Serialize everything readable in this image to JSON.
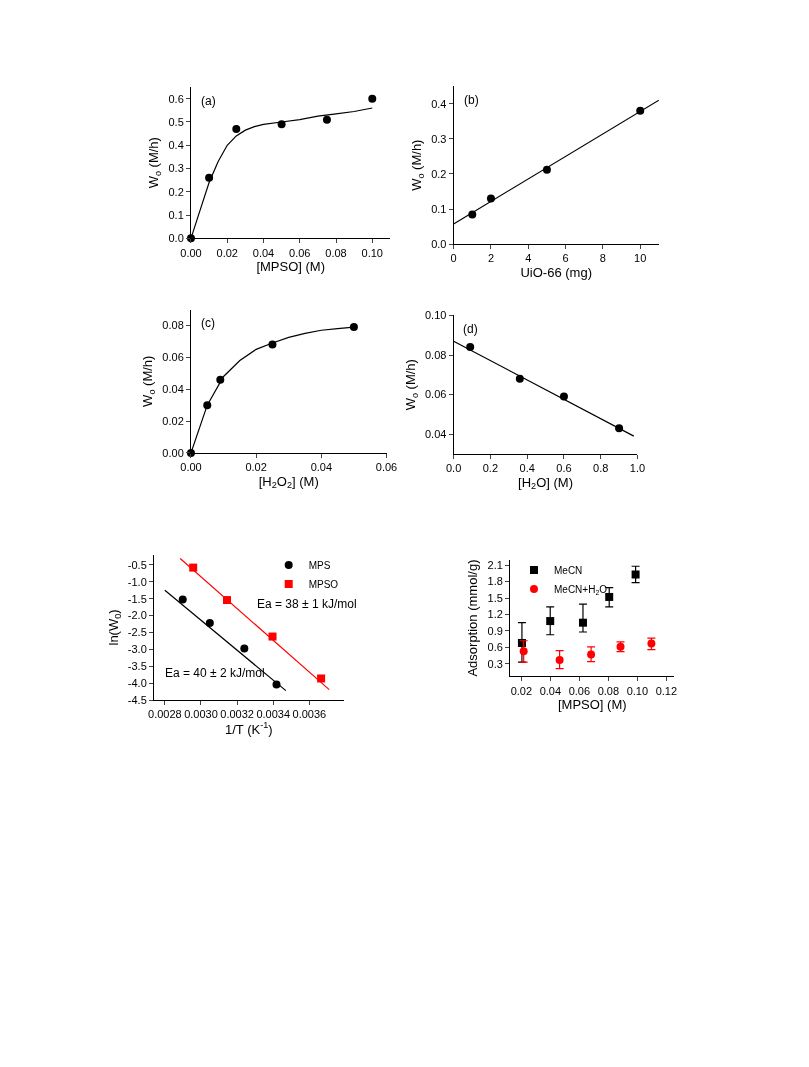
{
  "chart_data": [
    {
      "type": "scatter",
      "xlabel": "[MPSO] (M)",
      "ylabel": "W$_{o}$ (M/h)",
      "annotations": [
        "(a)"
      ],
      "legend": false,
      "xlim": [
        0,
        0.11
      ],
      "ylim": [
        0,
        0.65
      ],
      "xticks": [
        {
          "value": 0,
          "label": "0.00"
        },
        {
          "value": 0.02,
          "label": "0.02"
        },
        {
          "value": 0.04,
          "label": "0.04"
        },
        {
          "value": 0.06,
          "label": "0.06"
        },
        {
          "value": 0.08,
          "label": "0.08"
        },
        {
          "value": 0.1,
          "label": "0.10"
        }
      ],
      "yticks": [
        {
          "value": 0,
          "label": "0.0"
        },
        0.1,
        0.2,
        0.3,
        0.4,
        0.5,
        0.6
      ],
      "series": [
        {
          "type": "line",
          "marker": "none",
          "color": "#000000",
          "x": [
            0,
            0.005,
            0.01,
            0.015,
            0.02,
            0.025,
            0.03,
            0.035,
            0.04,
            0.05,
            0.06,
            0.07,
            0.08,
            0.09,
            0.1
          ],
          "values": [
            0,
            0.12,
            0.24,
            0.33,
            0.4,
            0.44,
            0.465,
            0.48,
            0.49,
            0.5,
            0.51,
            0.525,
            0.535,
            0.545,
            0.56
          ]
        },
        {
          "type": "scatter",
          "marker": "circle",
          "color": "#000000",
          "x": [
            0,
            0.01,
            0.025,
            0.05,
            0.075,
            0.1
          ],
          "values": [
            0,
            0.26,
            0.47,
            0.49,
            0.51,
            0.6
          ]
        }
      ]
    },
    {
      "type": "scatter",
      "xlabel": "UiO-66 (mg)",
      "ylabel": "W$_{o}$ (M/h)",
      "annotations": [
        "(b)"
      ],
      "legend": false,
      "xlim": [
        0,
        11
      ],
      "ylim": [
        0,
        0.45
      ],
      "xticks": [
        0,
        2,
        4,
        6,
        8,
        10
      ],
      "yticks": [
        {
          "value": 0,
          "label": "0.0"
        },
        0.1,
        0.2,
        0.3,
        0.4
      ],
      "series": [
        {
          "type": "line",
          "marker": "none",
          "color": "#000000",
          "x": [
            0,
            11
          ],
          "values": [
            0.058,
            0.41
          ]
        },
        {
          "type": "scatter",
          "marker": "circle",
          "color": "#000000",
          "x": [
            1,
            2,
            5,
            10
          ],
          "values": [
            0.085,
            0.13,
            0.212,
            0.38
          ]
        }
      ]
    },
    {
      "type": "scatter",
      "xlabel": "[H$_{2}$O$_{2}$] (M)",
      "ylabel": "W$_{o}$ (M/h)",
      "annotations": [
        "(c)"
      ],
      "legend": false,
      "xlim": [
        0,
        0.06
      ],
      "ylim": [
        0,
        0.09
      ],
      "xticks": [
        {
          "value": 0,
          "label": "0.00"
        },
        0.02,
        0.04,
        0.06
      ],
      "yticks": [
        {
          "value": 0,
          "label": "0.00"
        },
        0.02,
        0.04,
        0.06,
        0.08
      ],
      "series": [
        {
          "type": "line",
          "marker": "none",
          "color": "#000000",
          "x": [
            0,
            0.005,
            0.01,
            0.015,
            0.02,
            0.025,
            0.03,
            0.035,
            0.04,
            0.045,
            0.05
          ],
          "values": [
            0,
            0.03,
            0.048,
            0.058,
            0.065,
            0.069,
            0.0725,
            0.075,
            0.077,
            0.078,
            0.079
          ]
        },
        {
          "type": "scatter",
          "marker": "circle",
          "color": "#000000",
          "x": [
            0,
            0.005,
            0.009,
            0.025,
            0.05
          ],
          "values": [
            0,
            0.03,
            0.046,
            0.068,
            0.079
          ]
        }
      ]
    },
    {
      "type": "scatter",
      "xlabel": "[H$_{2}$O] (M)",
      "ylabel": "W$_{o}$ (M/h)",
      "annotations": [
        "(d)"
      ],
      "legend": false,
      "xlim": [
        0,
        1.0
      ],
      "ylim": [
        0.03,
        0.1
      ],
      "xticks": [
        {
          "value": 0,
          "label": "0.0"
        },
        0.2,
        0.4,
        0.6,
        0.8,
        {
          "value": 1,
          "label": "1.0"
        }
      ],
      "yticks": [
        0.04,
        0.06,
        0.08,
        {
          "value": 0.1,
          "label": "0.10"
        }
      ],
      "series": [
        {
          "type": "line",
          "marker": "none",
          "color": "#000000",
          "x": [
            0,
            0.98
          ],
          "values": [
            0.087,
            0.039
          ]
        },
        {
          "type": "scatter",
          "marker": "circle",
          "color": "#000000",
          "x": [
            0.09,
            0.36,
            0.6,
            0.9
          ],
          "values": [
            0.084,
            0.068,
            0.059,
            0.043
          ]
        }
      ]
    },
    {
      "type": "scatter",
      "xlabel": "1/T (K$^{-1}$)",
      "ylabel": "ln(W$_{0}$)",
      "legend": "top right",
      "annotations": [
        "Ea = 38 ± 1 kJ/mol",
        "Ea = 40 ± 2 kJ/mol"
      ],
      "xlim": [
        0.00274,
        0.00379
      ],
      "ylim": [
        -4.5,
        -0.2
      ],
      "xticks": [
        0.0028,
        {
          "value": 0.003,
          "label": "0.0030"
        },
        0.0032,
        0.0034,
        0.0036
      ],
      "yticks": [
        -4.5,
        {
          "value": -4,
          "label": "-4.0"
        },
        -3.5,
        {
          "value": -3,
          "label": "-3.0"
        },
        -2.5,
        {
          "value": -2,
          "label": "-2.0"
        },
        -1.5,
        {
          "value": -1,
          "label": "-1.0"
        },
        -0.5
      ],
      "series": [
        {
          "type": "line",
          "marker": "none",
          "color": "#000000",
          "x": [
            0.0028,
            0.00347
          ],
          "values": [
            -1.25,
            -4.22
          ]
        },
        {
          "type": "line",
          "marker": "none",
          "color": "#ff0000",
          "x": [
            0.002885,
            0.00371
          ],
          "values": [
            -0.31,
            -4.19
          ]
        },
        {
          "type": "scatter",
          "name": "MPS",
          "marker": "circle",
          "color": "#000000",
          "x": [
            0.002899,
            0.003049,
            0.00324,
            0.003418
          ],
          "values": [
            -1.52,
            -2.22,
            -2.97,
            -4.04
          ]
        },
        {
          "type": "scatter",
          "name": "MPSO",
          "marker": "square",
          "color": "#ff0000",
          "x": [
            0.002957,
            0.003144,
            0.003396,
            0.003665
          ],
          "values": [
            -0.58,
            -1.54,
            -2.62,
            -3.86
          ]
        }
      ]
    },
    {
      "type": "scatter",
      "xlabel": "[MPSO] (M)",
      "ylabel": "Adsorption (mmol/g)",
      "legend": "top left",
      "xlim": [
        0.0122,
        0.1256
      ],
      "ylim": [
        0.07,
        2.2
      ],
      "xticks": [
        0.02,
        0.04,
        0.06,
        0.08,
        {
          "value": 0.1,
          "label": "0.10"
        },
        0.12
      ],
      "yticks": [
        0.3,
        0.6,
        0.9,
        1.2,
        1.5,
        1.8,
        2.1
      ],
      "series": [
        {
          "type": "scatter",
          "name": "MeCN",
          "marker": "square",
          "color": "#000000",
          "x": [
            0.0204,
            0.0399,
            0.0625,
            0.0806,
            0.0988
          ],
          "values": [
            0.68,
            1.08,
            1.05,
            1.52,
            1.93
          ],
          "errors": [
            [
              0.33,
              1.05
            ],
            [
              0.83,
              1.34
            ],
            [
              0.88,
              1.39
            ],
            [
              1.34,
              1.69
            ],
            [
              1.78,
              2.08
            ]
          ]
        },
        {
          "type": "scatter",
          "name": "MeCN+H$_{2}$O",
          "marker": "circle",
          "color": "#ff0000",
          "x": [
            0.0216,
            0.0464,
            0.0681,
            0.0884,
            0.1097
          ],
          "values": [
            0.53,
            0.37,
            0.47,
            0.61,
            0.67
          ],
          "errors": [
            [
              0.33,
              0.72
            ],
            [
              0.21,
              0.54
            ],
            [
              0.34,
              0.61
            ],
            [
              0.52,
              0.7
            ],
            [
              0.56,
              0.77
            ]
          ]
        }
      ]
    }
  ]
}
